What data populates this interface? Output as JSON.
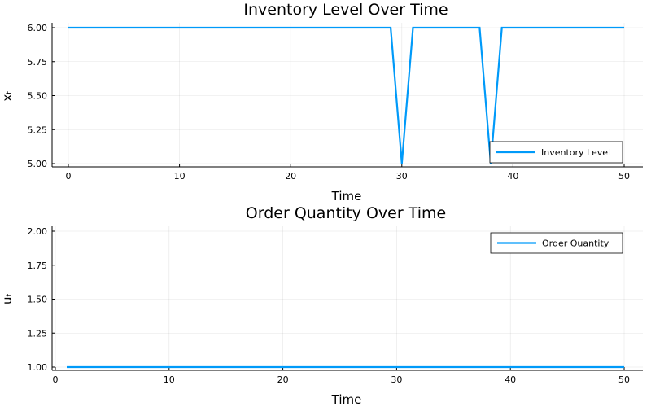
{
  "chart_data": [
    {
      "type": "line",
      "title": "Inventory Level Over Time",
      "xlabel": "Time",
      "ylabel": "xₜ",
      "xlim": [
        0,
        50
      ],
      "ylim": [
        5.0,
        6.0
      ],
      "x_ticks": [
        0,
        10,
        20,
        30,
        40,
        50
      ],
      "x_tick_labels": [
        "0",
        "10",
        "20",
        "30",
        "40",
        "50"
      ],
      "y_ticks": [
        5.0,
        5.25,
        5.5,
        5.75,
        6.0
      ],
      "y_tick_labels": [
        "5.00",
        "5.25",
        "5.50",
        "5.75",
        "6.00"
      ],
      "grid": true,
      "legend_position": "bottom-right",
      "series": [
        {
          "name": "Inventory Level",
          "color": "#009af9",
          "x": [
            0,
            1,
            2,
            3,
            4,
            5,
            6,
            7,
            8,
            9,
            10,
            11,
            12,
            13,
            14,
            15,
            16,
            17,
            18,
            19,
            20,
            21,
            22,
            23,
            24,
            25,
            26,
            27,
            28,
            29,
            30,
            31,
            32,
            33,
            34,
            35,
            36,
            37,
            38,
            39,
            40,
            41,
            42,
            43,
            44,
            45,
            46,
            47,
            48,
            49,
            50
          ],
          "values": [
            6,
            6,
            6,
            6,
            6,
            6,
            6,
            6,
            6,
            6,
            6,
            6,
            6,
            6,
            6,
            6,
            6,
            6,
            6,
            6,
            6,
            6,
            6,
            6,
            6,
            6,
            6,
            6,
            6,
            6,
            5,
            6,
            6,
            6,
            6,
            6,
            6,
            6,
            5,
            6,
            6,
            6,
            6,
            6,
            6,
            6,
            6,
            6,
            6,
            6,
            6
          ]
        }
      ]
    },
    {
      "type": "line",
      "title": "Order Quantity Over Time",
      "xlabel": "Time",
      "ylabel": "uₜ",
      "xlim": [
        0,
        50
      ],
      "ylim": [
        1.0,
        2.0
      ],
      "x_ticks": [
        0,
        10,
        20,
        30,
        40,
        50
      ],
      "x_tick_labels": [
        "0",
        "10",
        "20",
        "30",
        "40",
        "50"
      ],
      "y_ticks": [
        1.0,
        1.25,
        1.5,
        1.75,
        2.0
      ],
      "y_tick_labels": [
        "1.00",
        "1.25",
        "1.50",
        "1.75",
        "2.00"
      ],
      "grid": true,
      "legend_position": "top-right",
      "series": [
        {
          "name": "Order Quantity",
          "color": "#009af9",
          "x": [
            1,
            2,
            3,
            4,
            5,
            6,
            7,
            8,
            9,
            10,
            11,
            12,
            13,
            14,
            15,
            16,
            17,
            18,
            19,
            20,
            21,
            22,
            23,
            24,
            25,
            26,
            27,
            28,
            29,
            30,
            31,
            32,
            33,
            34,
            35,
            36,
            37,
            38,
            39,
            40,
            41,
            42,
            43,
            44,
            45,
            46,
            47,
            48,
            49,
            50
          ],
          "values": [
            1,
            1,
            1,
            1,
            1,
            1,
            1,
            1,
            1,
            1,
            1,
            1,
            1,
            1,
            1,
            1,
            1,
            1,
            1,
            1,
            1,
            1,
            1,
            1,
            1,
            1,
            1,
            1,
            1,
            1,
            1,
            1,
            1,
            1,
            1,
            1,
            1,
            1,
            1,
            1,
            1,
            1,
            1,
            1,
            1,
            1,
            1,
            1,
            1,
            1
          ]
        }
      ]
    }
  ]
}
